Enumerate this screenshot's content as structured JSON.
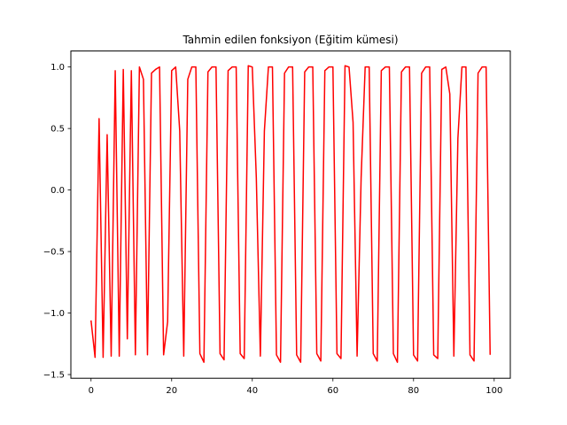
{
  "chart_data": {
    "type": "line",
    "title": "Tahmin edilen fonksiyon (Eğitim kümesi)",
    "xlabel": "",
    "ylabel": "",
    "xlim": [
      -5,
      104
    ],
    "ylim": [
      -1.53,
      1.13
    ],
    "grid": false,
    "x_ticks": [
      0,
      20,
      40,
      60,
      80,
      100
    ],
    "x_tick_labels": [
      "0",
      "20",
      "40",
      "60",
      "80",
      "100"
    ],
    "y_ticks": [
      1.0,
      0.5,
      0.0,
      -0.5,
      -1.0,
      -1.5
    ],
    "y_tick_labels": [
      "1.0",
      "0.5",
      "0.0",
      "−0.5",
      "−1.0",
      "−1.5"
    ],
    "series": [
      {
        "color": "#ff0000",
        "x": [
          0,
          1,
          2,
          3,
          4,
          5,
          6,
          7,
          8,
          9,
          10,
          11,
          12,
          13,
          14,
          15,
          16,
          17,
          18,
          19,
          20,
          21,
          22,
          23,
          24,
          25,
          26,
          27,
          28,
          29,
          30,
          31,
          32,
          33,
          34,
          35,
          36,
          37,
          38,
          39,
          40,
          41,
          42,
          43,
          44,
          45,
          46,
          47,
          48,
          49,
          50,
          51,
          52,
          53,
          54,
          55,
          56,
          57,
          58,
          59,
          60,
          61,
          62,
          63,
          64,
          65,
          66,
          67,
          68,
          69,
          70,
          71,
          72,
          73,
          74,
          75,
          76,
          77,
          78,
          79,
          80,
          81,
          82,
          83,
          84,
          85,
          86,
          87,
          88,
          89,
          90,
          91,
          92,
          93,
          94,
          95,
          96,
          97,
          98,
          99
        ],
        "y": [
          -1.06,
          -1.36,
          0.58,
          -1.36,
          0.45,
          -1.35,
          0.97,
          -1.35,
          0.98,
          -1.21,
          0.97,
          -1.34,
          1.0,
          0.9,
          -1.34,
          0.95,
          0.98,
          1.0,
          -1.34,
          -1.07,
          0.97,
          1.0,
          0.48,
          -1.35,
          0.9,
          1.0,
          1.0,
          -1.33,
          -1.4,
          0.96,
          1.0,
          1.0,
          -1.33,
          -1.38,
          0.97,
          1.0,
          1.0,
          -1.33,
          -1.37,
          1.01,
          1.0,
          0.1,
          -1.35,
          0.48,
          1.0,
          1.0,
          -1.34,
          -1.4,
          0.95,
          1.0,
          1.0,
          -1.34,
          -1.4,
          0.96,
          1.0,
          1.0,
          -1.33,
          -1.39,
          0.97,
          1.0,
          1.0,
          -1.33,
          -1.37,
          1.01,
          1.0,
          0.55,
          -1.35,
          0.1,
          1.0,
          1.0,
          -1.33,
          -1.39,
          0.97,
          1.0,
          1.0,
          -1.33,
          -1.4,
          0.96,
          1.0,
          1.0,
          -1.34,
          -1.39,
          0.95,
          1.0,
          1.0,
          -1.34,
          -1.37,
          0.98,
          1.0,
          0.78,
          -1.35,
          0.42,
          1.0,
          1.0,
          -1.34,
          -1.39,
          0.95,
          1.0,
          1.0,
          -1.34
        ]
      }
    ]
  }
}
